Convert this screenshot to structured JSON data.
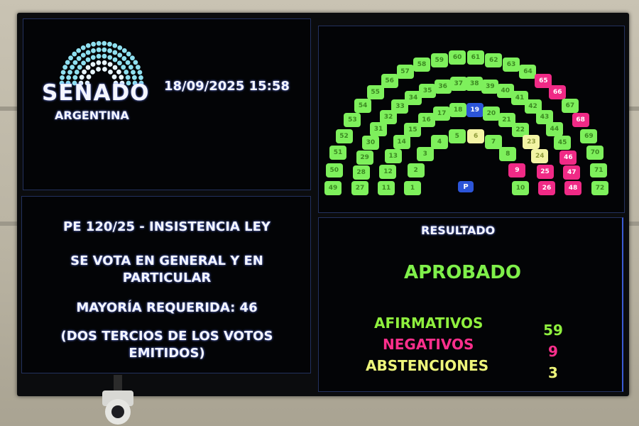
{
  "header": {
    "logo_title": "SENADO",
    "logo_subtitle": "ARGENTINA",
    "datetime": "18/09/2025 15:58"
  },
  "motion": {
    "title": "PE 120/25 - INSISTENCIA LEY",
    "vote_type_line1": "SE VOTA EN GENERAL Y EN",
    "vote_type_line2": "PARTICULAR",
    "majority": "MAYORÍA REQUERIDA: 46",
    "majority_note_line1": "(DOS TERCIOS DE LOS VOTOS",
    "majority_note_line2": "EMITIDOS)"
  },
  "result": {
    "heading": "RESULTADO",
    "outcome": "APROBADO",
    "affirmative_label": "AFIRMATIVOS",
    "affirmative_count": "59",
    "negative_label": "NEGATIVOS",
    "negative_count": "9",
    "abstention_label": "ABSTENCIONES",
    "abstention_count": "3"
  },
  "colors": {
    "affirmative": "#7ef05c",
    "negative": "#f02a86",
    "abstention": "#f3f4a4",
    "absent": "#2c55d8"
  },
  "hemicycle": {
    "president_label": "P",
    "rows": [
      [
        1,
        2,
        3,
        4,
        5,
        6,
        7,
        8,
        9,
        10
      ],
      [
        11,
        12,
        13,
        14,
        15,
        16,
        17,
        18,
        19,
        20,
        21,
        22,
        23,
        24,
        25,
        26
      ],
      [
        27,
        28,
        29,
        30,
        31,
        32,
        33,
        34,
        35,
        36,
        37,
        38,
        39,
        40,
        41,
        42,
        43,
        44,
        45,
        46,
        47,
        48
      ],
      [
        49,
        50,
        51,
        52,
        53,
        54,
        55,
        56,
        57,
        58,
        59,
        60,
        61,
        62,
        63,
        64,
        65,
        66,
        67,
        68,
        69,
        70,
        71,
        72
      ]
    ],
    "negative_seats": [
      9,
      25,
      26,
      46,
      47,
      48,
      65,
      66,
      68
    ],
    "abstention_seats": [
      6,
      23,
      24
    ],
    "absent_seats": [
      19
    ]
  }
}
